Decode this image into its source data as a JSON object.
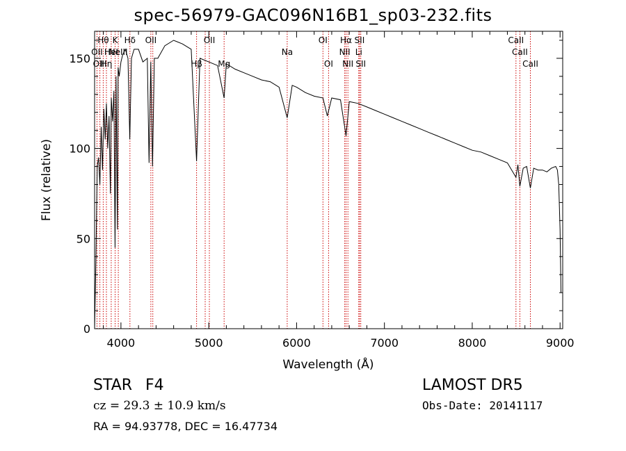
{
  "title": "spec-56979-GAC096N16B1_sp03-232.fits",
  "footer": {
    "object_class": "STAR",
    "subclass": "F4",
    "survey": "LAMOST DR5",
    "cz": "cz = 29.3 ± 10.9 km/s",
    "obs_date": "Obs-Date: 20141117",
    "coords": "RA =  94.93778, DEC =  16.47734"
  },
  "colors": {
    "spectrum": "#000000",
    "line_markers": "#cc0000",
    "axes": "#000000"
  },
  "chart_data": {
    "type": "line",
    "title": "spec-56979-GAC096N16B1_sp03-232.fits",
    "xlabel": "Wavelength (Å)",
    "ylabel": "Flux (relative)",
    "xlim": [
      3700,
      9030
    ],
    "ylim": [
      0,
      165
    ],
    "xticks": [
      4000,
      5000,
      6000,
      7000,
      8000,
      9000
    ],
    "yticks": [
      0,
      50,
      100,
      150
    ],
    "series": [
      {
        "x": [
          3700,
          3715,
          3730,
          3745,
          3760,
          3775,
          3790,
          3805,
          3820,
          3835,
          3850,
          3865,
          3880,
          3890,
          3905,
          3920,
          3933,
          3945,
          3960,
          3968,
          3980,
          4000,
          4020,
          4050,
          4080,
          4101,
          4120,
          4150,
          4200,
          4250,
          4300,
          4320,
          4340,
          4360,
          4380,
          4420,
          4500,
          4600,
          4700,
          4800,
          4861,
          4900,
          5000,
          5100,
          5175,
          5200,
          5300,
          5400,
          5500,
          5600,
          5700,
          5800,
          5893,
          5950,
          6000,
          6100,
          6200,
          6300,
          6350,
          6400,
          6500,
          6563,
          6600,
          6700,
          6800,
          6900,
          7000,
          7100,
          7200,
          7300,
          7400,
          7500,
          7600,
          7700,
          7800,
          7900,
          8000,
          8100,
          8200,
          8300,
          8400,
          8498,
          8520,
          8542,
          8580,
          8620,
          8662,
          8700,
          8750,
          8800,
          8850,
          8900,
          8950,
          8970,
          8985,
          9000,
          9010
        ],
        "y": [
          0,
          38,
          90,
          95,
          80,
          112,
          88,
          122,
          105,
          125,
          100,
          118,
          75,
          128,
          115,
          132,
          45,
          140,
          55,
          145,
          140,
          148,
          152,
          155,
          150,
          105,
          150,
          155,
          155,
          148,
          150,
          92,
          148,
          90,
          150,
          150,
          157,
          160,
          158,
          155,
          93,
          150,
          148,
          146,
          128,
          147,
          144,
          142,
          140,
          138,
          137,
          134,
          117,
          135,
          134,
          131,
          129,
          128,
          118,
          128,
          127,
          107,
          126,
          125,
          123,
          121,
          119,
          117,
          115,
          113,
          111,
          109,
          107,
          105,
          103,
          101,
          99,
          98,
          96,
          94,
          92,
          84,
          91,
          79,
          89,
          90,
          78,
          89,
          88,
          88,
          87,
          89,
          90,
          88,
          80,
          55,
          20
        ]
      }
    ],
    "line_labels": [
      {
        "text": "Hθ",
        "wavelength": 3798,
        "row": 1
      },
      {
        "text": "K",
        "wavelength": 3934,
        "row": 1
      },
      {
        "text": "Hδ",
        "wavelength": 4102,
        "row": 1
      },
      {
        "text": "OII",
        "wavelength": 4341,
        "row": 1
      },
      {
        "text": "OII",
        "wavelength": 5007,
        "row": 1
      },
      {
        "text": "OI",
        "wavelength": 6300,
        "row": 1
      },
      {
        "text": "Hα",
        "wavelength": 6563,
        "row": 1
      },
      {
        "text": "SII",
        "wavelength": 6717,
        "row": 1
      },
      {
        "text": "CaII",
        "wavelength": 8498,
        "row": 1
      },
      {
        "text": "OII",
        "wavelength": 3727,
        "row": 2
      },
      {
        "text": "HeI",
        "wavelength": 3889,
        "row": 2
      },
      {
        "text": "NeIII",
        "wavelength": 3970,
        "row": 2
      },
      {
        "text": "Na",
        "wavelength": 5893,
        "row": 2
      },
      {
        "text": "NII",
        "wavelength": 6548,
        "row": 2
      },
      {
        "text": "Li",
        "wavelength": 6708,
        "row": 2
      },
      {
        "text": "CaII",
        "wavelength": 8542,
        "row": 2
      },
      {
        "text": "OIII",
        "wavelength": 3760,
        "row": 3
      },
      {
        "text": "Hη",
        "wavelength": 3835,
        "row": 3
      },
      {
        "text": "Hβ",
        "wavelength": 4861,
        "row": 3
      },
      {
        "text": "Mg",
        "wavelength": 5175,
        "row": 3
      },
      {
        "text": "OI",
        "wavelength": 6364,
        "row": 3
      },
      {
        "text": "NII",
        "wavelength": 6584,
        "row": 3
      },
      {
        "text": "SII",
        "wavelength": 6731,
        "row": 3
      },
      {
        "text": "CaII",
        "wavelength": 8662,
        "row": 3
      }
    ],
    "marker_lines": [
      3727,
      3760,
      3798,
      3835,
      3889,
      3934,
      3970,
      4102,
      4341,
      4363,
      4861,
      4959,
      5007,
      5175,
      5893,
      6300,
      6364,
      6548,
      6563,
      6584,
      6708,
      6717,
      6731,
      8498,
      8542,
      8662
    ]
  }
}
